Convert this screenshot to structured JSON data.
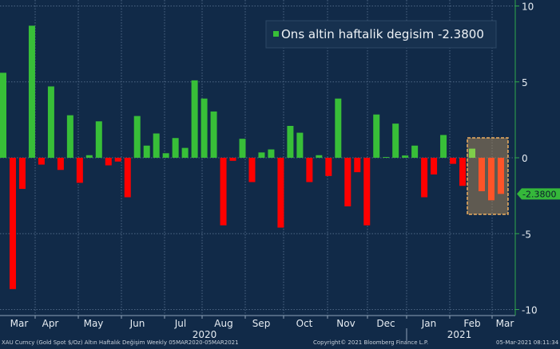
{
  "chart_data": {
    "type": "bar",
    "title": "",
    "legend": {
      "label": "Ons altin haftalik degisim -2.3800",
      "placement": "top-right"
    },
    "last_value_label": "-2.3800",
    "x_frequency": "weekly",
    "x_range": [
      "2020-03-05",
      "2021-03-05"
    ],
    "month_labels": [
      "Mar",
      "Apr",
      "May",
      "Jun",
      "Jul",
      "Aug",
      "Sep",
      "Oct",
      "Nov",
      "Dec",
      "Jan",
      "Feb",
      "Mar"
    ],
    "year_labels": [
      "2020",
      "2021"
    ],
    "ylim": [
      -10,
      10
    ],
    "yticks": [
      "10",
      "5",
      "0",
      "-5",
      "-10"
    ],
    "grid": true,
    "values": [
      5.6,
      -8.65,
      -2.05,
      8.7,
      -0.45,
      4.7,
      -0.8,
      2.8,
      -1.65,
      0.17,
      2.4,
      -0.5,
      -0.25,
      -2.6,
      2.75,
      0.8,
      1.6,
      0.3,
      1.3,
      0.65,
      5.1,
      3.9,
      3.05,
      -4.45,
      -0.2,
      1.25,
      -1.6,
      0.35,
      0.55,
      -4.6,
      2.1,
      1.65,
      -1.6,
      0.17,
      -1.2,
      3.9,
      -3.2,
      -0.95,
      -4.45,
      2.85,
      0.05,
      2.25,
      0.15,
      0.8,
      -2.6,
      -1.1,
      1.5,
      -0.4,
      -1.85,
      0.6,
      -2.2,
      -2.8,
      -2.38
    ],
    "highlighted_last_n": 4,
    "colors": {
      "positive": "#38bf38",
      "negative": "#ff0000",
      "highlight_negative": "#ff5428",
      "highlight_box": "#f0b060",
      "background": "#112a48",
      "axis": "#2fa84a"
    }
  },
  "footer": {
    "source": "XAU Curncy (Gold Spot  $/Oz) Altın Haftalık Değişim  Weekly 05MAR2020-05MAR2021",
    "copyright": "Copyright© 2021 Bloomberg Finance L.P.",
    "timestamp": "05-Mar-2021 08:11:34"
  }
}
